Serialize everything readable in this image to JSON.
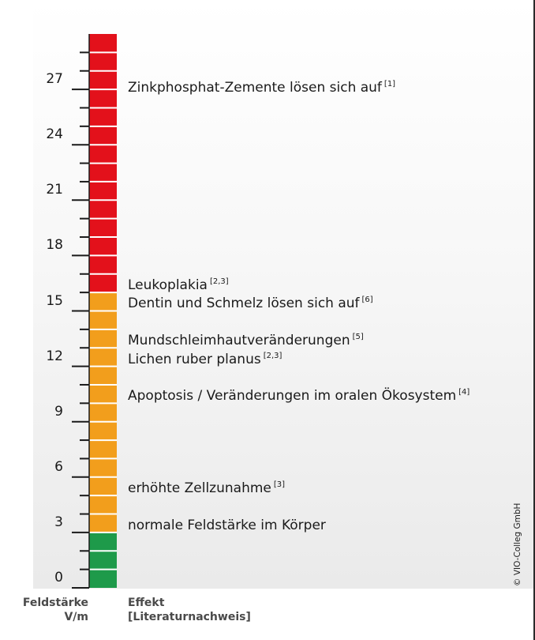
{
  "chart_data": {
    "type": "bar",
    "title": "",
    "yaxis": {
      "min": 0,
      "max": 30,
      "minor_step": 1,
      "major_step": 3,
      "ticks": [
        "0",
        "3",
        "6",
        "9",
        "12",
        "15",
        "18",
        "21",
        "24",
        "27"
      ],
      "label_line1": "Feldstärke",
      "label_line2": "V/m"
    },
    "bands": [
      {
        "from": 0,
        "to": 3,
        "color": "#1e9a4a"
      },
      {
        "from": 3,
        "to": 16,
        "color": "#f29e1c"
      },
      {
        "from": 16,
        "to": 30,
        "color": "#e3111b"
      }
    ],
    "effects_header_line1": "Effekt",
    "effects_header_line2": "[Literaturnachweis]",
    "effects": [
      {
        "value": 27,
        "text": "Zinkphosphat-Zemente lösen sich auf",
        "ref": "[1]"
      },
      {
        "value": 16.3,
        "text": "Leukoplakia",
        "ref": "[2,3]"
      },
      {
        "value": 15.3,
        "text": "Dentin und Schmelz lösen sich auf",
        "ref": "[6]"
      },
      {
        "value": 13.3,
        "text": "Mundschleimhautveränderungen",
        "ref": "[5]"
      },
      {
        "value": 12.3,
        "text": "Lichen ruber planus",
        "ref": "[2,3]"
      },
      {
        "value": 10.3,
        "text": "Apoptosis / Veränderungen im oralen Ökosystem",
        "ref": "[4]"
      },
      {
        "value": 5.3,
        "text": "erhöhte Zellzunahme",
        "ref": "[3]"
      },
      {
        "value": 3.3,
        "text": "normale Feldstärke im Körper",
        "ref": ""
      }
    ]
  },
  "copyright": "© VIO-Colleg GmbH"
}
